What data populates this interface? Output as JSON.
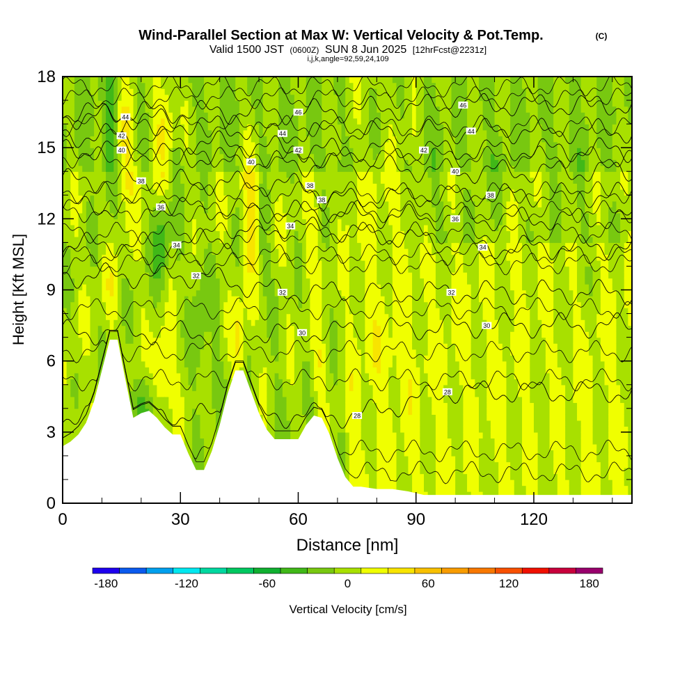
{
  "chart_data": {
    "type": "heatmap",
    "title": "Wind-Parallel Section at Max W: Vertical Velocity & Pot.Temp.",
    "title_mark": "(C)",
    "subtitle": {
      "lead": "Valid 1500 JST",
      "utc": "(0600Z)",
      "date": "SUN 8 Jun 2025",
      "run": "[12hrFcst@2231z]"
    },
    "index_line": "i,j,k,angle=92,59,24,109",
    "xlabel": "Distance [nm]",
    "ylabel": "Height [Kft MSL]",
    "xlim": [
      0,
      145
    ],
    "ylim": [
      0,
      18
    ],
    "x_ticks": [
      "0",
      "30",
      "60",
      "90",
      "120"
    ],
    "x_tick_values": [
      0,
      30,
      60,
      90,
      120
    ],
    "y_ticks": [
      "0",
      "3",
      "6",
      "9",
      "12",
      "15",
      "18"
    ],
    "y_tick_values": [
      0,
      3,
      6,
      9,
      12,
      15,
      18
    ],
    "terrain": {
      "x": [
        0,
        2,
        4,
        6,
        8,
        10,
        12,
        14,
        16,
        18,
        20,
        22,
        24,
        26,
        28,
        30,
        32,
        34,
        36,
        38,
        40,
        42,
        44,
        46,
        48,
        50,
        52,
        54,
        56,
        58,
        60,
        62,
        64,
        66,
        68,
        70,
        72,
        74,
        76,
        80,
        84,
        88,
        92,
        96,
        100,
        110,
        120,
        130,
        140,
        145
      ],
      "height_kft": [
        2.4,
        2.6,
        2.9,
        3.4,
        4.3,
        5.6,
        6.9,
        6.9,
        5.2,
        3.6,
        3.8,
        3.9,
        3.6,
        3.2,
        2.9,
        2.9,
        2.1,
        1.4,
        1.4,
        2.2,
        3.3,
        4.6,
        5.6,
        5.6,
        4.7,
        3.8,
        3.1,
        2.7,
        2.7,
        2.7,
        2.7,
        3.3,
        3.7,
        3.6,
        2.9,
        1.9,
        1.1,
        0.7,
        0.7,
        0.6,
        0.6,
        0.5,
        0.35,
        0.35,
        0.35,
        0.35,
        0.35,
        0.35,
        0.35,
        0.35
      ]
    },
    "contour_labels": [
      {
        "text": "46",
        "x": 60,
        "y": 16.5
      },
      {
        "text": "46",
        "x": 102,
        "y": 16.8
      },
      {
        "text": "44",
        "x": 16,
        "y": 16.3
      },
      {
        "text": "44",
        "x": 56,
        "y": 15.6
      },
      {
        "text": "44",
        "x": 104,
        "y": 15.7
      },
      {
        "text": "42",
        "x": 15,
        "y": 15.5
      },
      {
        "text": "42",
        "x": 60,
        "y": 14.9
      },
      {
        "text": "42",
        "x": 92,
        "y": 14.9
      },
      {
        "text": "40",
        "x": 15,
        "y": 14.9
      },
      {
        "text": "40",
        "x": 48,
        "y": 14.4
      },
      {
        "text": "40",
        "x": 100,
        "y": 14.0
      },
      {
        "text": "38",
        "x": 20,
        "y": 13.6
      },
      {
        "text": "38",
        "x": 63,
        "y": 13.4
      },
      {
        "text": "38",
        "x": 66,
        "y": 12.8
      },
      {
        "text": "38",
        "x": 109,
        "y": 13.0
      },
      {
        "text": "36",
        "x": 25,
        "y": 12.5
      },
      {
        "text": "36",
        "x": 100,
        "y": 12.0
      },
      {
        "text": "34",
        "x": 29,
        "y": 10.9
      },
      {
        "text": "34",
        "x": 58,
        "y": 11.7
      },
      {
        "text": "34",
        "x": 107,
        "y": 10.8
      },
      {
        "text": "32",
        "x": 34,
        "y": 9.6
      },
      {
        "text": "32",
        "x": 56,
        "y": 8.9
      },
      {
        "text": "32",
        "x": 99,
        "y": 8.9
      },
      {
        "text": "30",
        "x": 61,
        "y": 7.2
      },
      {
        "text": "30",
        "x": 108,
        "y": 7.5
      },
      {
        "text": "28",
        "x": 98,
        "y": 4.7
      },
      {
        "text": "28",
        "x": 75,
        "y": 3.7
      }
    ],
    "colorbar": {
      "label": "Vertical Velocity [cm/s]",
      "tick_labels": [
        "-180",
        "-120",
        "-60",
        "0",
        "60",
        "120",
        "180"
      ],
      "tick_values": [
        -180,
        -120,
        -60,
        0,
        60,
        120,
        180
      ],
      "bins": [
        -190,
        -170,
        -150,
        -130,
        -110,
        -90,
        -70,
        -50,
        -30,
        -10,
        10,
        30,
        50,
        70,
        90,
        110,
        130,
        150,
        170,
        190
      ],
      "colors": [
        "#1e00ee",
        "#0a5aee",
        "#00a0ee",
        "#00e8f0",
        "#00d8a0",
        "#00c860",
        "#10b030",
        "#40b818",
        "#78c810",
        "#a8e000",
        "#f0ff00",
        "#f8e400",
        "#f8c000",
        "#f89c00",
        "#f87800",
        "#f85000",
        "#f01000",
        "#c8003c",
        "#98006c",
        "#68108c"
      ]
    }
  }
}
